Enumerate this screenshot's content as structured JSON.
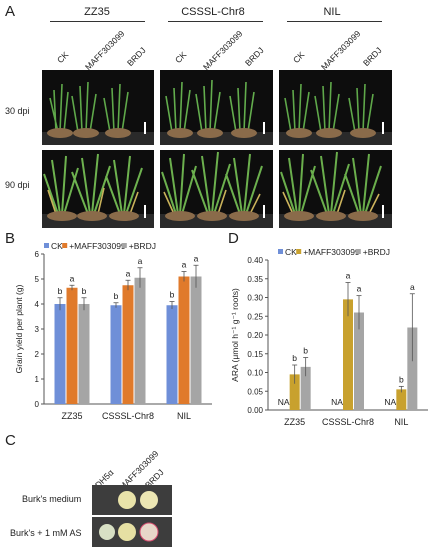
{
  "panels": {
    "a": "A",
    "b": "B",
    "c": "C",
    "d": "D"
  },
  "panelA": {
    "groups": [
      "ZZ35",
      "CSSSL-Chr8",
      "NIL"
    ],
    "conditions": [
      "CK",
      "MAFF303099",
      "BRDJ"
    ],
    "rows": [
      "30 dpi",
      "90 dpi"
    ]
  },
  "panelC": {
    "strains": [
      "DH5α",
      "MAFF303099",
      "BRDJ"
    ],
    "media": [
      "Burk's medium",
      "Burk's + 1 mM AS"
    ]
  },
  "chart_data": [
    {
      "type": "bar",
      "panel": "B",
      "categories": [
        "ZZ35",
        "CSSSL-Chr8",
        "NIL"
      ],
      "series": [
        {
          "name": "CK",
          "color": "#6f8fd8",
          "values": [
            4.0,
            3.95,
            3.95
          ],
          "errors": [
            0.25,
            0.1,
            0.15
          ],
          "letters": [
            "b",
            "b",
            "b"
          ]
        },
        {
          "name": "+MAFF303099",
          "color": "#e07a2b",
          "values": [
            4.65,
            4.75,
            5.1
          ],
          "errors": [
            0.1,
            0.2,
            0.2
          ],
          "letters": [
            "a",
            "a",
            "a"
          ]
        },
        {
          "name": "+BRDJ",
          "color": "#a5a5a5",
          "values": [
            4.0,
            5.05,
            5.1
          ],
          "errors": [
            0.25,
            0.4,
            0.45
          ],
          "letters": [
            "b",
            "a",
            "a"
          ]
        }
      ],
      "ylabel": "Grain yield per plant (g)",
      "ylim": [
        0,
        6
      ],
      "yticks": [
        0,
        1,
        2,
        3,
        4,
        5,
        6
      ],
      "legend": "top"
    },
    {
      "type": "bar",
      "panel": "D",
      "categories": [
        "ZZ35",
        "CSSSL-Chr8",
        "NIL"
      ],
      "series": [
        {
          "name": "CK",
          "color": "#6f8fd8",
          "values": [
            null,
            null,
            null
          ],
          "errors": [
            null,
            null,
            null
          ],
          "letters": [
            "NA",
            "NA",
            "NA"
          ]
        },
        {
          "name": "+MAFF303099",
          "color": "#c8a12e",
          "values": [
            0.095,
            0.295,
            0.055
          ],
          "errors": [
            0.025,
            0.045,
            0.008
          ],
          "letters": [
            "b",
            "a",
            "b"
          ]
        },
        {
          "name": "+BRDJ",
          "color": "#a5a5a5",
          "values": [
            0.115,
            0.26,
            0.22
          ],
          "errors": [
            0.025,
            0.045,
            0.09
          ],
          "letters": [
            "b",
            "a",
            "a"
          ]
        }
      ],
      "ylabel": "ARA (μmol h⁻¹ g⁻¹ roots)",
      "ylim": [
        0,
        0.4
      ],
      "yticks": [
        "0.00",
        "0.05",
        "0.10",
        "0.15",
        "0.20",
        "0.25",
        "0.30",
        "0.35",
        "0.40"
      ],
      "legend": "top"
    }
  ]
}
